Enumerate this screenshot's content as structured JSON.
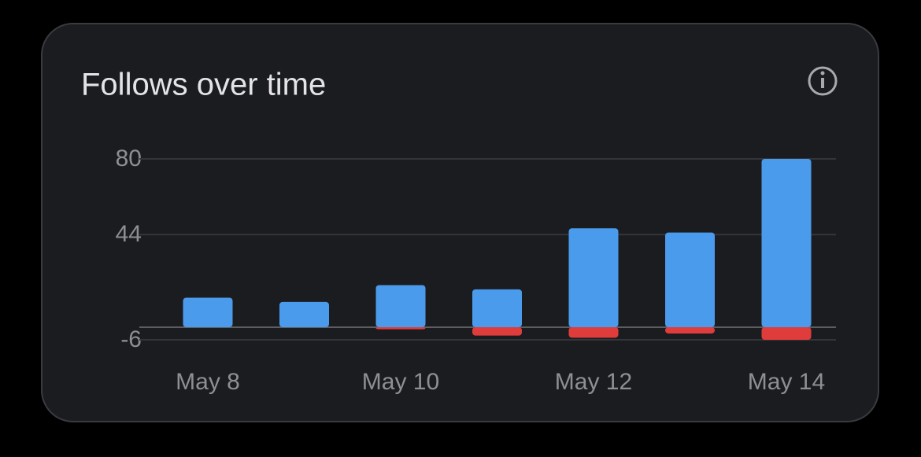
{
  "chart_data": {
    "type": "bar",
    "title": "Follows over time",
    "categories": [
      "May 8",
      null,
      "May 10",
      null,
      "May 12",
      null,
      "May 14"
    ],
    "series": [
      {
        "color": "#4b9bec",
        "values": [
          14,
          12,
          20,
          18,
          47,
          45,
          80
        ]
      },
      {
        "color": "#e13c3c",
        "values": [
          0,
          0,
          -1,
          -4,
          -5,
          -3,
          -6
        ]
      }
    ],
    "ylim": [
      -6,
      80
    ],
    "yticks": [
      -6,
      44,
      80
    ],
    "grid": true
  }
}
